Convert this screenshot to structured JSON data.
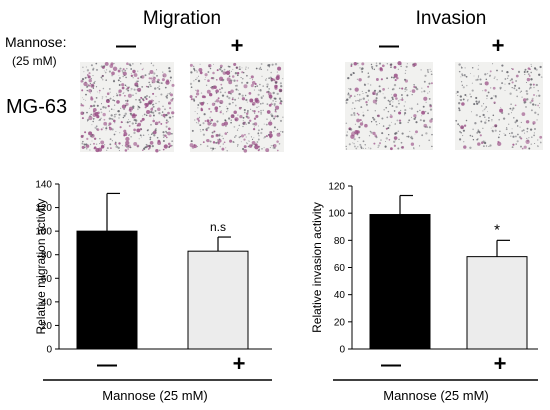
{
  "figure": {
    "section_titles": [
      "Migration",
      "Invasion"
    ],
    "treatment_label_line1": "Mannose:",
    "treatment_label_line2": "(25 mM)",
    "minus_sign": "—",
    "plus_sign": "+",
    "cell_line": "MG-63",
    "micrograph_colors": {
      "background": "#f1f1ef",
      "stain": "#9a4f86",
      "cells": "#5a5a62"
    },
    "panel_sample_labels": [
      "—",
      "+",
      "—",
      "+"
    ]
  },
  "chart_data": [
    {
      "type": "bar",
      "categories": [
        "—",
        "+"
      ],
      "values": [
        100,
        83
      ],
      "errors": [
        32,
        12
      ],
      "bar_colors": [
        "#000000",
        "#ececec"
      ],
      "annotations": [
        "",
        "n.s"
      ],
      "ylabel": "Relative migration activity",
      "xlabel": "Mannose (25 mM)",
      "ylim": [
        0,
        140
      ],
      "yticks": [
        0,
        20,
        40,
        60,
        80,
        100,
        120,
        140
      ],
      "grid": false
    },
    {
      "type": "bar",
      "categories": [
        "—",
        "+"
      ],
      "values": [
        99,
        68
      ],
      "errors": [
        14,
        12
      ],
      "bar_colors": [
        "#000000",
        "#ececec"
      ],
      "annotations": [
        "",
        "*"
      ],
      "ylabel": "Relative invasion activity",
      "xlabel": "Mannose (25 mM)",
      "ylim": [
        0,
        120
      ],
      "yticks": [
        0,
        20,
        40,
        60,
        80,
        100,
        120
      ],
      "grid": false
    }
  ]
}
